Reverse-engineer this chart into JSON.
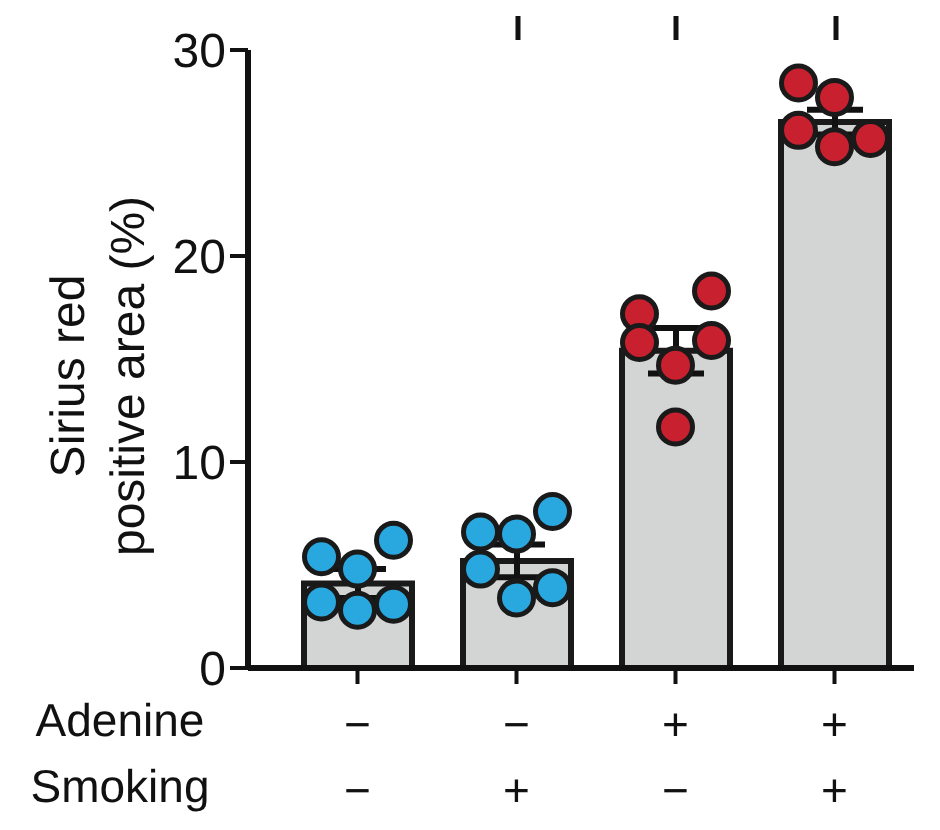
{
  "chart_data": {
    "type": "bar",
    "ylabel": "Sirius red positive area (%)",
    "categories": [
      "−\n−",
      "−\n+",
      "+\n−",
      "+\n+"
    ],
    "annotations": [
      "Adenine",
      "Smoking"
    ],
    "ylim": [
      0,
      30
    ],
    "yticks": [
      0,
      10,
      20,
      30
    ],
    "grid": false,
    "series": [
      {
        "color": "#d3d4d4",
        "values": [
          4.1,
          5.2,
          15.4,
          26.5
        ],
        "errors": [
          0.7,
          0.8,
          1.1,
          0.6
        ]
      },
      {
        "type": "scatter",
        "marker": "circle",
        "x": [
          "−\n−",
          "−\n−",
          "−\n−",
          "−\n−",
          "−\n−",
          "−\n−",
          "−\n+",
          "−\n+",
          "−\n+",
          "−\n+",
          "−\n+",
          "−\n+",
          "+\n−",
          "+\n−",
          "+\n−",
          "+\n−",
          "+\n−",
          "+\n−",
          "+\n+",
          "+\n+",
          "+\n+",
          "+\n+",
          "+\n+"
        ],
        "values": [
          5.4,
          4.8,
          6.2,
          3.2,
          2.8,
          3.1,
          6.6,
          6.5,
          7.6,
          4.8,
          3.4,
          3.9,
          17.2,
          14.7,
          18.3,
          15.8,
          11.7,
          15.9,
          26.1,
          25.3,
          25.7,
          28.4,
          27.7
        ],
        "colors": [
          "#29a8e0",
          "#29a8e0",
          "#29a8e0",
          "#29a8e0",
          "#29a8e0",
          "#29a8e0",
          "#29a8e0",
          "#29a8e0",
          "#29a8e0",
          "#29a8e0",
          "#29a8e0",
          "#29a8e0",
          "#c8202f",
          "#c8202f",
          "#c8202f",
          "#c8202f",
          "#c8202f",
          "#c8202f",
          "#c8202f",
          "#c8202f",
          "#c8202f",
          "#c8202f",
          "#c8202f"
        ]
      }
    ]
  }
}
